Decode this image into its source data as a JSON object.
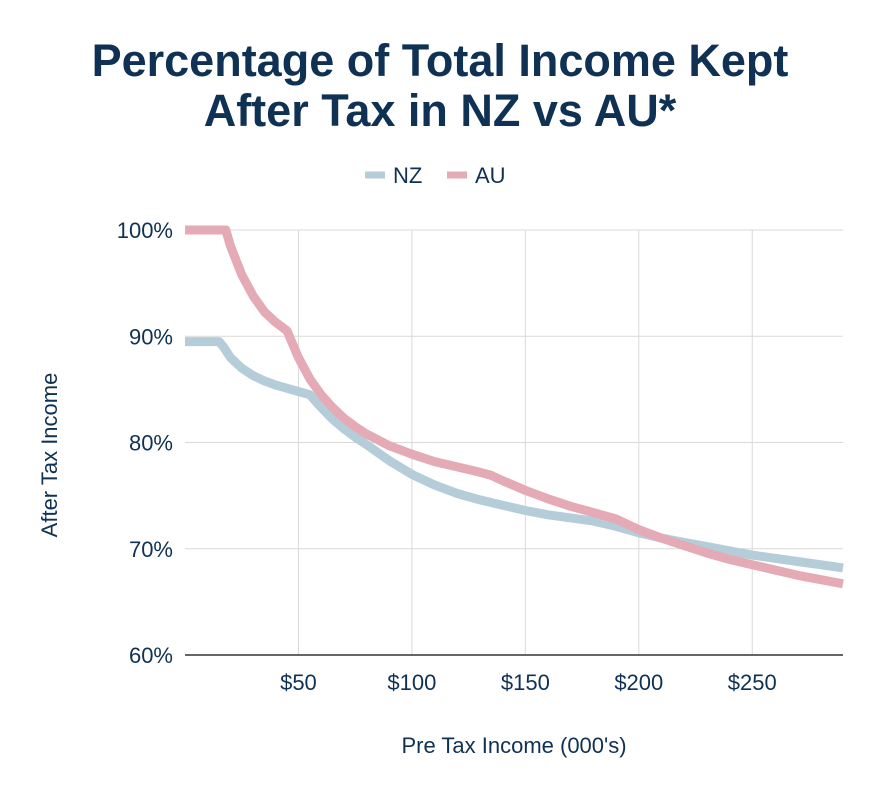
{
  "chart_data": {
    "type": "line",
    "title_lines": [
      "Percentage of Total Income Kept",
      "After Tax in NZ vs AU*"
    ],
    "xlabel": "Pre Tax Income (000's)",
    "ylabel": "After Tax Income",
    "xlim": [
      0,
      290
    ],
    "ylim": [
      60,
      100
    ],
    "x_ticks": [
      50,
      100,
      150,
      200,
      250
    ],
    "x_tick_labels": [
      "$50",
      "$100",
      "$150",
      "$200",
      "$250"
    ],
    "y_ticks": [
      60,
      70,
      80,
      90,
      100
    ],
    "y_tick_labels": [
      "60%",
      "70%",
      "80%",
      "90%",
      "100%"
    ],
    "grid": true,
    "legend_position": "top-center",
    "series": [
      {
        "name": "NZ",
        "color": "#b5cdd8",
        "x": [
          0,
          15,
          17,
          20,
          25,
          30,
          35,
          40,
          45,
          50,
          55,
          60,
          65,
          70,
          75,
          80,
          90,
          100,
          110,
          120,
          130,
          140,
          150,
          160,
          170,
          180,
          190,
          200,
          210,
          220,
          230,
          240,
          250,
          260,
          270,
          280,
          290
        ],
        "y": [
          89.5,
          89.5,
          89.0,
          88.0,
          87.0,
          86.3,
          85.8,
          85.4,
          85.1,
          84.8,
          84.5,
          83.3,
          82.2,
          81.3,
          80.5,
          79.8,
          78.3,
          77.0,
          76.0,
          75.2,
          74.6,
          74.1,
          73.6,
          73.2,
          72.9,
          72.6,
          72.1,
          71.5,
          71.0,
          70.6,
          70.2,
          69.8,
          69.4,
          69.1,
          68.8,
          68.5,
          68.2
        ]
      },
      {
        "name": "AU",
        "color": "#e4aab5",
        "x": [
          0,
          18,
          20,
          25,
          30,
          35,
          40,
          45,
          50,
          55,
          60,
          65,
          70,
          75,
          80,
          90,
          100,
          110,
          120,
          130,
          135,
          140,
          150,
          160,
          170,
          180,
          190,
          200,
          210,
          220,
          230,
          240,
          250,
          260,
          270,
          280,
          290
        ],
        "y": [
          100.0,
          100.0,
          98.5,
          95.8,
          93.8,
          92.3,
          91.3,
          90.5,
          88.0,
          86.0,
          84.5,
          83.3,
          82.3,
          81.5,
          80.8,
          79.7,
          78.9,
          78.2,
          77.7,
          77.2,
          76.9,
          76.4,
          75.5,
          74.7,
          74.0,
          73.4,
          72.8,
          71.8,
          71.0,
          70.3,
          69.6,
          69.0,
          68.5,
          68.0,
          67.5,
          67.1,
          66.7
        ]
      }
    ]
  }
}
